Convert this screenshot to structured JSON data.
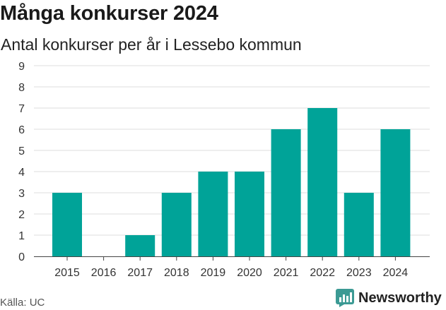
{
  "header": {
    "title": "Många konkurser 2024",
    "subtitle": "Antal konkurser per år i Lessebo kommun"
  },
  "footer": {
    "source": "Källa: UC",
    "brand": "Newsworthy",
    "brand_icon": "newsworthy-logo-icon"
  },
  "colors": {
    "bar": "#00a398",
    "brand": "#3c9a94",
    "grid": "#dddddd"
  },
  "chart_data": {
    "type": "bar",
    "title": "Många konkurser 2024",
    "subtitle": "Antal konkurser per år i Lessebo kommun",
    "xlabel": "",
    "ylabel": "",
    "categories": [
      "2015",
      "2016",
      "2017",
      "2018",
      "2019",
      "2020",
      "2021",
      "2022",
      "2023",
      "2024"
    ],
    "values": [
      3,
      0,
      1,
      3,
      4,
      4,
      6,
      7,
      3,
      6
    ],
    "ylim": [
      0,
      9
    ],
    "yticks": [
      0,
      1,
      2,
      3,
      4,
      5,
      6,
      7,
      8,
      9
    ],
    "grid": true,
    "legend": "none"
  }
}
